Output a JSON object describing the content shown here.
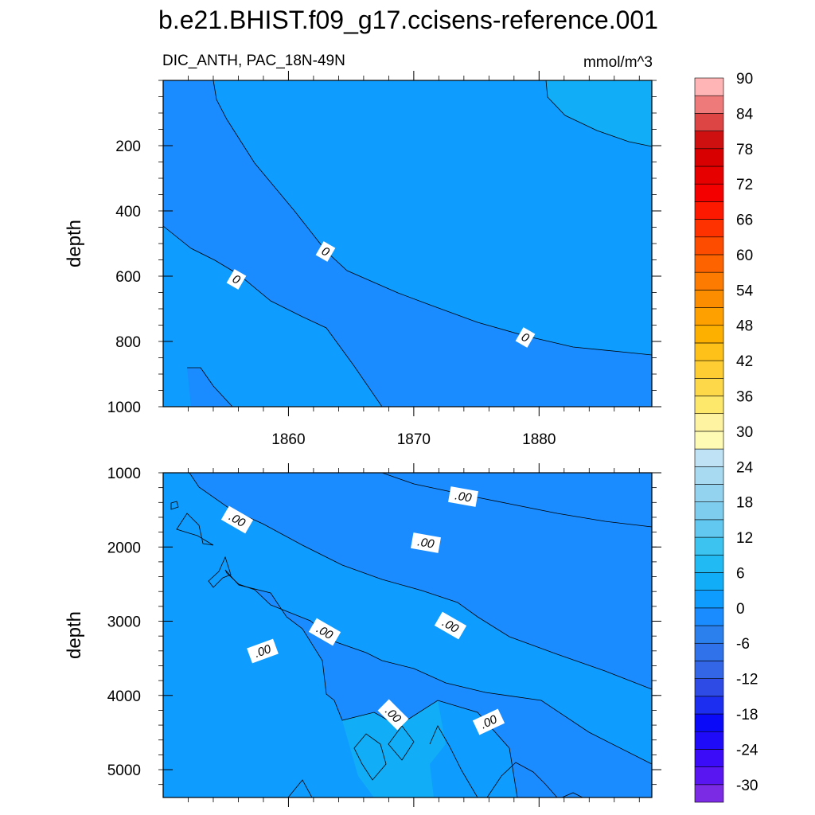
{
  "chart_data": {
    "type": "contour",
    "title": "b.e21.BHIST.f09_g17.ccisens-reference.001",
    "subtitle_left": "DIC_ANTH, PAC_18N-49N",
    "units": "mmol/m^3",
    "xlabel": "",
    "ylabel": "depth",
    "xlim": [
      1850,
      1889
    ],
    "x_ticks": [
      1860,
      1870,
      1880
    ],
    "x_tick_labels": [
      "1860",
      "1870",
      "1880"
    ],
    "colorbar": {
      "levels": [
        -30,
        -27,
        -24,
        -21,
        -18,
        -15,
        -12,
        -9,
        -6,
        -3,
        0,
        3,
        6,
        9,
        12,
        15,
        18,
        21,
        24,
        27,
        30,
        33,
        36,
        39,
        42,
        45,
        48,
        51,
        54,
        57,
        60,
        63,
        66,
        69,
        72,
        75,
        78,
        81,
        84,
        87,
        90
      ],
      "tick_labels": [
        "-30",
        "-24",
        "-18",
        "-12",
        "-6",
        "0",
        "6",
        "12",
        "18",
        "24",
        "30",
        "36",
        "42",
        "48",
        "54",
        "60",
        "66",
        "72",
        "78",
        "84",
        "90"
      ],
      "colors": [
        "#7b2be3",
        "#5a16f0",
        "#3a0cf8",
        "#1f0bf8",
        "#0a0af8",
        "#1c2ff0",
        "#2e4be6",
        "#3366e6",
        "#2f72ea",
        "#2b80ee",
        "#1a8cff",
        "#0f9cff",
        "#12adf7",
        "#22baf2",
        "#3cc3ef",
        "#62c8f0",
        "#7fcdee",
        "#93d3ef",
        "#a8dbf1",
        "#bfe3f5",
        "#fefbb5",
        "#fef3a0",
        "#fde86c",
        "#fdd94a",
        "#fdcd33",
        "#fdc11a",
        "#fdb000",
        "#fda000",
        "#fd8d00",
        "#fd7b00",
        "#fd6400",
        "#fd4c00",
        "#fd3200",
        "#fd1800",
        "#f40000",
        "#e60000",
        "#d80000",
        "#cf1010",
        "#dd4545",
        "#ee7a7a",
        "#ffb5b5"
      ]
    },
    "panels": [
      {
        "name": "upper",
        "ylim": [
          1000,
          0
        ],
        "y_ticks": [
          200,
          400,
          600,
          800,
          1000
        ],
        "y_tick_labels": [
          "200",
          "400",
          "600",
          "800",
          "1000"
        ],
        "contour_labels": [
          "0",
          "0",
          "0"
        ]
      },
      {
        "name": "lower",
        "ylim": [
          5375,
          1000
        ],
        "y_ticks": [
          1000,
          2000,
          3000,
          4000,
          5000
        ],
        "y_tick_labels": [
          "1000",
          "2000",
          "3000",
          "4000",
          "5000"
        ],
        "contour_labels": [
          ".00",
          ".00",
          ".00",
          ".00",
          ".00",
          ".00",
          ".00"
        ]
      }
    ]
  }
}
